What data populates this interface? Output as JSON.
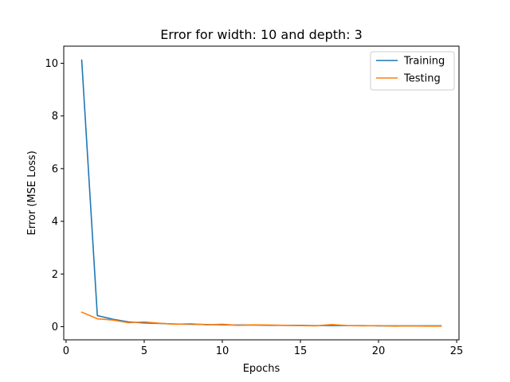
{
  "chart_data": {
    "type": "line",
    "title": "Error for width: 10 and depth: 3",
    "xlabel": "Epochs",
    "ylabel": "Error (MSE Loss)",
    "xlim": [
      -0.15,
      25.15
    ],
    "ylim": [
      -0.5,
      10.65
    ],
    "xticks": [
      0,
      5,
      10,
      15,
      20,
      25
    ],
    "yticks": [
      0,
      2,
      4,
      6,
      8,
      10
    ],
    "legend_position": "top-right",
    "grid": false,
    "x": [
      1,
      2,
      3,
      4,
      5,
      6,
      7,
      8,
      9,
      10,
      11,
      12,
      13,
      14,
      15,
      16,
      17,
      18,
      19,
      20,
      21,
      22,
      23,
      24
    ],
    "series": [
      {
        "name": "Training",
        "color": "#1f77b4",
        "values": [
          10.12,
          0.42,
          0.28,
          0.18,
          0.14,
          0.12,
          0.1,
          0.09,
          0.08,
          0.07,
          0.06,
          0.06,
          0.05,
          0.05,
          0.05,
          0.04,
          0.04,
          0.04,
          0.04,
          0.03,
          0.03,
          0.03,
          0.03,
          0.03
        ]
      },
      {
        "name": "Testing",
        "color": "#ff7f0e",
        "values": [
          0.55,
          0.3,
          0.25,
          0.15,
          0.18,
          0.13,
          0.09,
          0.11,
          0.07,
          0.09,
          0.05,
          0.07,
          0.06,
          0.05,
          0.04,
          0.03,
          0.08,
          0.04,
          0.03,
          0.04,
          0.02,
          0.03,
          0.02,
          0.02
        ]
      }
    ]
  }
}
